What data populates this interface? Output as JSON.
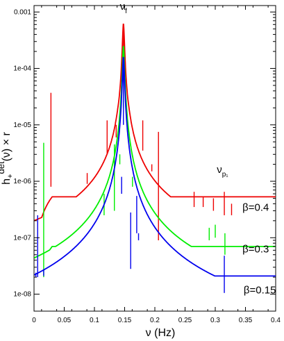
{
  "chart_data": {
    "type": "line",
    "title": "",
    "xlabel": "ν (Hz)",
    "ylabel": "h+det(ν) × r",
    "ylabel_main": "h",
    "ylabel_sub": "+",
    "ylabel_sup": "det",
    "ylabel_rest": "(ν) × r",
    "xlim": [
      0,
      0.4
    ],
    "ylim": [
      5e-09,
      0.0013
    ],
    "yscale": "log",
    "xticks": [
      0,
      0.05,
      0.1,
      0.15,
      0.2,
      0.25,
      0.3,
      0.35,
      0.4
    ],
    "xtick_labels": [
      "0",
      "0.05",
      "0.1",
      "0.15",
      "0.2",
      "0.25",
      "0.3",
      "0.35",
      "0.4"
    ],
    "yticks": [
      1e-08,
      1e-07,
      1e-06,
      1e-05,
      0.0001,
      0.001
    ],
    "ytick_labels": [
      "1e-08",
      "1e-07",
      "1e-06",
      "1e-05",
      "1e-04",
      "0.001"
    ],
    "grid": false,
    "legend": "none",
    "annotations": [
      {
        "text": "ν",
        "sub": "f",
        "x": 0.148,
        "y": 0.0011
      },
      {
        "text": "ν",
        "sub": "p₁",
        "x": 0.312,
        "y": 1.4e-06
      }
    ],
    "series": [
      {
        "label": "β=0.4",
        "color": "#ee0000",
        "label_x": 0.345,
        "label_y": 3e-07,
        "floor": 3.6e-09,
        "base": 5.3e-07,
        "resonances": [
          {
            "x0": 0.148,
            "height": 0.00062,
            "width": 0.0015
          }
        ],
        "spikes": [
          {
            "x": 0.028,
            "up": 3.7e-05,
            "down": 8e-07
          },
          {
            "x": 0.088,
            "up": 1.4e-06,
            "down": 9e-07
          },
          {
            "x": 0.121,
            "up": 1.2e-05,
            "down": 3e-06
          },
          {
            "x": 0.136,
            "up": 1e-05,
            "down": 6e-06
          },
          {
            "x": 0.148,
            "up": 0.00062,
            "down": 3e-05
          },
          {
            "x": 0.18,
            "up": 1.2e-05,
            "down": 3.5e-06
          },
          {
            "x": 0.195,
            "up": 2e-06,
            "down": 1.5e-06
          },
          {
            "x": 0.206,
            "up": 7.5e-06,
            "down": 9e-08
          },
          {
            "x": 0.265,
            "up": 6.5e-07,
            "down": 3.5e-07
          },
          {
            "x": 0.28,
            "up": 5.2e-07,
            "down": 3.5e-07
          },
          {
            "x": 0.297,
            "up": 5e-07,
            "down": 3e-07
          },
          {
            "x": 0.315,
            "up": 6.5e-07,
            "down": 2.5e-07
          },
          {
            "x": 0.327,
            "up": 4e-07,
            "down": 2.5e-07
          }
        ]
      },
      {
        "label": "β=0.3",
        "color": "#00ee00",
        "label_x": 0.345,
        "label_y": 5.5e-08,
        "floor": 5.5e-10,
        "base": 7e-08,
        "resonances": [
          {
            "x0": 0.148,
            "height": 0.00025,
            "width": 0.0015
          }
        ],
        "spikes": [
          {
            "x": 0.016,
            "up": 4.8e-06,
            "down": 2e-08
          },
          {
            "x": 0.116,
            "up": 6e-07,
            "down": 2.5e-07
          },
          {
            "x": 0.133,
            "up": 4.5e-06,
            "down": 3e-07
          },
          {
            "x": 0.142,
            "up": 3e-06,
            "down": 2e-06
          },
          {
            "x": 0.148,
            "up": 0.00025,
            "down": 2e-05
          },
          {
            "x": 0.163,
            "up": 1.2e-06,
            "down": 8e-07
          },
          {
            "x": 0.29,
            "up": 1.5e-07,
            "down": 9e-08
          },
          {
            "x": 0.3,
            "up": 1.7e-07,
            "down": 1e-07
          },
          {
            "x": 0.316,
            "up": 1.2e-07,
            "down": 5e-08
          }
        ]
      },
      {
        "label": "β=0.15",
        "color": "#0000ee",
        "label_x": 0.347,
        "label_y": 1.03e-08,
        "floor": 1.1e-10,
        "base": 2.1e-08,
        "resonances": [
          {
            "x0": 0.148,
            "height": 0.00016,
            "width": 0.0015
          }
        ],
        "spikes": [
          {
            "x": 0.003,
            "up": 2.4e-08,
            "down": 2e-08
          },
          {
            "x": 0.006,
            "up": 2.5e-07,
            "down": 2e-08
          },
          {
            "x": 0.016,
            "up": 2.7e-08,
            "down": 2.1e-08
          },
          {
            "x": 0.145,
            "up": 1.2e-06,
            "down": 6e-07
          },
          {
            "x": 0.148,
            "up": 0.00016,
            "down": 1e-05
          },
          {
            "x": 0.16,
            "up": 2.8e-07,
            "down": 2.8e-08
          },
          {
            "x": 0.17,
            "up": 5.5e-07,
            "down": 1.2e-07
          },
          {
            "x": 0.173,
            "up": 1.2e-07,
            "down": 9e-08
          },
          {
            "x": 0.315,
            "up": 4.8e-08,
            "down": 1.05e-08
          }
        ]
      }
    ]
  }
}
